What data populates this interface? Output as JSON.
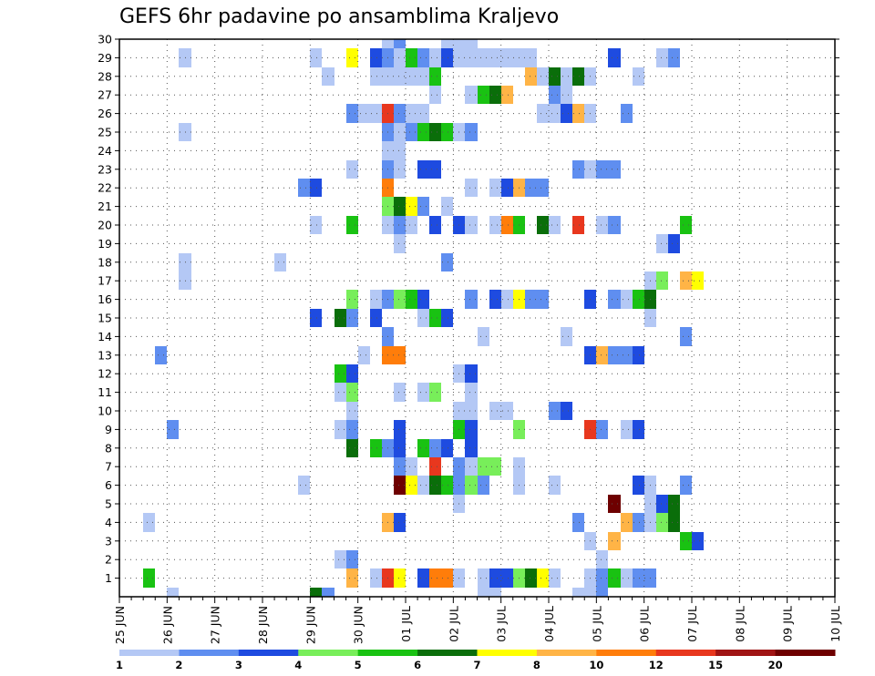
{
  "chart_data": {
    "type": "heatmap",
    "title": "GEFS 6hr padavine po ansamblima Kraljevo",
    "xlabel": "",
    "ylabel": "",
    "x_tick_labels": [
      "25 JUN",
      "26 JUN",
      "27 JUN",
      "28 JUN",
      "29 JUN",
      "30 JUN",
      "01 JUL",
      "02 JUL",
      "03 JUL",
      "04 JUL",
      "05 JUL",
      "06 JUL",
      "07 JUL",
      "08 JUL",
      "09 JUL",
      "10 JUL"
    ],
    "x_range_days": [
      0,
      15
    ],
    "y_tick_labels": [
      "1",
      "2",
      "3",
      "4",
      "5",
      "6",
      "7",
      "8",
      "9",
      "10",
      "11",
      "12",
      "13",
      "14",
      "15",
      "16",
      "17",
      "18",
      "19",
      "20",
      "21",
      "22",
      "23",
      "24",
      "25",
      "26",
      "27",
      "28",
      "29",
      "30"
    ],
    "y_range": [
      0,
      30
    ],
    "grid": true,
    "time_step_hours": 6,
    "legend": {
      "placement": "bottom",
      "levels": [
        "1",
        "2",
        "3",
        "4",
        "5",
        "6",
        "7",
        "8",
        "10",
        "12",
        "15",
        "20"
      ],
      "colors": [
        "#b4c8f5",
        "#5f8ef0",
        "#1e4be0",
        "#78ee5a",
        "#19c212",
        "#0a6e0a",
        "#ffff00",
        "#ffb446",
        "#ff7d0a",
        "#e8371e",
        "#a01414",
        "#6e0000"
      ]
    },
    "cells": [
      [
        30,
        22,
        0
      ],
      [
        30,
        23,
        1
      ],
      [
        30,
        27,
        0
      ],
      [
        30,
        28,
        0
      ],
      [
        30,
        29,
        0
      ],
      [
        29,
        5,
        0
      ],
      [
        29,
        16,
        0
      ],
      [
        29,
        19,
        6
      ],
      [
        29,
        21,
        2
      ],
      [
        29,
        22,
        1
      ],
      [
        29,
        23,
        0
      ],
      [
        29,
        24,
        4
      ],
      [
        29,
        25,
        1
      ],
      [
        29,
        26,
        0
      ],
      [
        29,
        27,
        2
      ],
      [
        29,
        28,
        0
      ],
      [
        29,
        29,
        0
      ],
      [
        29,
        30,
        0
      ],
      [
        29,
        31,
        0
      ],
      [
        29,
        32,
        0
      ],
      [
        29,
        33,
        0
      ],
      [
        29,
        34,
        0
      ],
      [
        29,
        41,
        2
      ],
      [
        29,
        45,
        0
      ],
      [
        29,
        46,
        1
      ],
      [
        28,
        17,
        0
      ],
      [
        28,
        21,
        0
      ],
      [
        28,
        22,
        0
      ],
      [
        28,
        23,
        0
      ],
      [
        28,
        24,
        0
      ],
      [
        28,
        25,
        0
      ],
      [
        28,
        26,
        4
      ],
      [
        28,
        34,
        7
      ],
      [
        28,
        35,
        0
      ],
      [
        28,
        36,
        5
      ],
      [
        28,
        37,
        0
      ],
      [
        28,
        38,
        5
      ],
      [
        28,
        39,
        0
      ],
      [
        28,
        43,
        0
      ],
      [
        27,
        26,
        0
      ],
      [
        27,
        29,
        0
      ],
      [
        27,
        30,
        4
      ],
      [
        27,
        31,
        5
      ],
      [
        27,
        32,
        7
      ],
      [
        27,
        36,
        1
      ],
      [
        27,
        37,
        0
      ],
      [
        26,
        19,
        1
      ],
      [
        26,
        20,
        0
      ],
      [
        26,
        21,
        0
      ],
      [
        26,
        22,
        9
      ],
      [
        26,
        23,
        1
      ],
      [
        26,
        24,
        0
      ],
      [
        26,
        25,
        0
      ],
      [
        26,
        35,
        0
      ],
      [
        26,
        36,
        0
      ],
      [
        26,
        37,
        2
      ],
      [
        26,
        38,
        7
      ],
      [
        26,
        39,
        0
      ],
      [
        26,
        42,
        1
      ],
      [
        25,
        5,
        0
      ],
      [
        25,
        22,
        1
      ],
      [
        25,
        23,
        0
      ],
      [
        25,
        24,
        1
      ],
      [
        25,
        25,
        4
      ],
      [
        25,
        26,
        5
      ],
      [
        25,
        27,
        4
      ],
      [
        25,
        28,
        0
      ],
      [
        25,
        29,
        1
      ],
      [
        24,
        22,
        0
      ],
      [
        24,
        23,
        0
      ],
      [
        23,
        19,
        0
      ],
      [
        23,
        22,
        1
      ],
      [
        23,
        23,
        0
      ],
      [
        23,
        25,
        2
      ],
      [
        23,
        26,
        2
      ],
      [
        23,
        38,
        1
      ],
      [
        23,
        39,
        0
      ],
      [
        23,
        40,
        1
      ],
      [
        23,
        41,
        1
      ],
      [
        22,
        15,
        1
      ],
      [
        22,
        16,
        2
      ],
      [
        22,
        22,
        8
      ],
      [
        22,
        29,
        0
      ],
      [
        22,
        31,
        0
      ],
      [
        22,
        32,
        2
      ],
      [
        22,
        33,
        7
      ],
      [
        22,
        34,
        1
      ],
      [
        22,
        35,
        1
      ],
      [
        21,
        22,
        3
      ],
      [
        21,
        23,
        5
      ],
      [
        21,
        24,
        6
      ],
      [
        21,
        25,
        1
      ],
      [
        21,
        27,
        0
      ],
      [
        20,
        16,
        0
      ],
      [
        20,
        19,
        4
      ],
      [
        20,
        22,
        0
      ],
      [
        20,
        23,
        1
      ],
      [
        20,
        24,
        0
      ],
      [
        20,
        26,
        2
      ],
      [
        20,
        28,
        2
      ],
      [
        20,
        29,
        0
      ],
      [
        20,
        31,
        0
      ],
      [
        20,
        32,
        8
      ],
      [
        20,
        33,
        4
      ],
      [
        20,
        35,
        5
      ],
      [
        20,
        36,
        0
      ],
      [
        20,
        38,
        9
      ],
      [
        20,
        40,
        0
      ],
      [
        20,
        41,
        1
      ],
      [
        20,
        47,
        4
      ],
      [
        19,
        23,
        0
      ],
      [
        19,
        45,
        0
      ],
      [
        19,
        46,
        2
      ],
      [
        18,
        5,
        0
      ],
      [
        18,
        13,
        0
      ],
      [
        18,
        27,
        1
      ],
      [
        17,
        5,
        0
      ],
      [
        17,
        44,
        0
      ],
      [
        17,
        45,
        3
      ],
      [
        17,
        47,
        7
      ],
      [
        17,
        48,
        6
      ],
      [
        16,
        19,
        3
      ],
      [
        16,
        21,
        0
      ],
      [
        16,
        22,
        1
      ],
      [
        16,
        23,
        3
      ],
      [
        16,
        24,
        4
      ],
      [
        16,
        25,
        2
      ],
      [
        16,
        29,
        1
      ],
      [
        16,
        31,
        2
      ],
      [
        16,
        32,
        0
      ],
      [
        16,
        33,
        6
      ],
      [
        16,
        34,
        1
      ],
      [
        16,
        35,
        1
      ],
      [
        16,
        39,
        2
      ],
      [
        16,
        41,
        1
      ],
      [
        16,
        42,
        0
      ],
      [
        16,
        43,
        4
      ],
      [
        16,
        44,
        5
      ],
      [
        15,
        16,
        2
      ],
      [
        15,
        18,
        5
      ],
      [
        15,
        19,
        1
      ],
      [
        15,
        21,
        2
      ],
      [
        15,
        25,
        0
      ],
      [
        15,
        26,
        4
      ],
      [
        15,
        27,
        2
      ],
      [
        15,
        44,
        0
      ],
      [
        14,
        22,
        1
      ],
      [
        14,
        30,
        0
      ],
      [
        14,
        37,
        0
      ],
      [
        14,
        47,
        1
      ],
      [
        13,
        3,
        1
      ],
      [
        13,
        20,
        0
      ],
      [
        13,
        22,
        8
      ],
      [
        13,
        23,
        8
      ],
      [
        13,
        39,
        2
      ],
      [
        13,
        40,
        7
      ],
      [
        13,
        41,
        1
      ],
      [
        13,
        42,
        1
      ],
      [
        13,
        43,
        2
      ],
      [
        12,
        18,
        4
      ],
      [
        12,
        19,
        2
      ],
      [
        12,
        28,
        0
      ],
      [
        12,
        29,
        2
      ],
      [
        11,
        18,
        0
      ],
      [
        11,
        19,
        3
      ],
      [
        11,
        23,
        0
      ],
      [
        11,
        25,
        0
      ],
      [
        11,
        26,
        3
      ],
      [
        11,
        29,
        0
      ],
      [
        10,
        19,
        0
      ],
      [
        10,
        28,
        0
      ],
      [
        10,
        29,
        0
      ],
      [
        10,
        31,
        0
      ],
      [
        10,
        32,
        0
      ],
      [
        10,
        36,
        1
      ],
      [
        10,
        37,
        2
      ],
      [
        9,
        4,
        1
      ],
      [
        9,
        18,
        0
      ],
      [
        9,
        19,
        1
      ],
      [
        9,
        23,
        2
      ],
      [
        9,
        28,
        4
      ],
      [
        9,
        29,
        2
      ],
      [
        9,
        33,
        3
      ],
      [
        9,
        39,
        9
      ],
      [
        9,
        40,
        1
      ],
      [
        9,
        42,
        0
      ],
      [
        9,
        43,
        2
      ],
      [
        8,
        19,
        5
      ],
      [
        8,
        21,
        4
      ],
      [
        8,
        22,
        1
      ],
      [
        8,
        23,
        2
      ],
      [
        8,
        25,
        4
      ],
      [
        8,
        26,
        1
      ],
      [
        8,
        27,
        2
      ],
      [
        8,
        29,
        2
      ],
      [
        7,
        23,
        1
      ],
      [
        7,
        24,
        0
      ],
      [
        7,
        26,
        9
      ],
      [
        7,
        28,
        1
      ],
      [
        7,
        29,
        0
      ],
      [
        7,
        30,
        3
      ],
      [
        7,
        31,
        3
      ],
      [
        7,
        33,
        0
      ],
      [
        6,
        15,
        0
      ],
      [
        6,
        23,
        11
      ],
      [
        6,
        24,
        6
      ],
      [
        6,
        25,
        0
      ],
      [
        6,
        26,
        5
      ],
      [
        6,
        27,
        4
      ],
      [
        6,
        28,
        1
      ],
      [
        6,
        29,
        3
      ],
      [
        6,
        30,
        1
      ],
      [
        6,
        33,
        0
      ],
      [
        6,
        36,
        0
      ],
      [
        6,
        43,
        2
      ],
      [
        6,
        44,
        0
      ],
      [
        6,
        47,
        1
      ],
      [
        5,
        28,
        0
      ],
      [
        5,
        41,
        11
      ],
      [
        5,
        44,
        0
      ],
      [
        5,
        45,
        2
      ],
      [
        5,
        46,
        5
      ],
      [
        4,
        2,
        0
      ],
      [
        4,
        22,
        7
      ],
      [
        4,
        23,
        2
      ],
      [
        4,
        38,
        1
      ],
      [
        4,
        42,
        7
      ],
      [
        4,
        43,
        1
      ],
      [
        4,
        44,
        0
      ],
      [
        4,
        45,
        3
      ],
      [
        4,
        46,
        5
      ],
      [
        3,
        39,
        0
      ],
      [
        3,
        41,
        7
      ],
      [
        3,
        47,
        4
      ],
      [
        3,
        48,
        2
      ],
      [
        2,
        18,
        0
      ],
      [
        2,
        19,
        1
      ],
      [
        2,
        40,
        0
      ],
      [
        1,
        2,
        4
      ],
      [
        1,
        19,
        7
      ],
      [
        1,
        21,
        0
      ],
      [
        1,
        22,
        9
      ],
      [
        1,
        23,
        6
      ],
      [
        1,
        25,
        2
      ],
      [
        1,
        26,
        8
      ],
      [
        1,
        27,
        8
      ],
      [
        1,
        28,
        0
      ],
      [
        1,
        30,
        0
      ],
      [
        1,
        31,
        2
      ],
      [
        1,
        32,
        2
      ],
      [
        1,
        33,
        3
      ],
      [
        1,
        34,
        5
      ],
      [
        1,
        35,
        6
      ],
      [
        1,
        36,
        0
      ],
      [
        1,
        39,
        0
      ],
      [
        1,
        40,
        1
      ],
      [
        1,
        41,
        4
      ],
      [
        1,
        42,
        0
      ],
      [
        1,
        43,
        1
      ],
      [
        1,
        44,
        1
      ],
      [
        0,
        4,
        0
      ],
      [
        0,
        16,
        5
      ],
      [
        0,
        17,
        1
      ],
      [
        0,
        30,
        0
      ],
      [
        0,
        31,
        0
      ],
      [
        0,
        38,
        0
      ],
      [
        0,
        39,
        0
      ],
      [
        0,
        40,
        1
      ]
    ]
  }
}
